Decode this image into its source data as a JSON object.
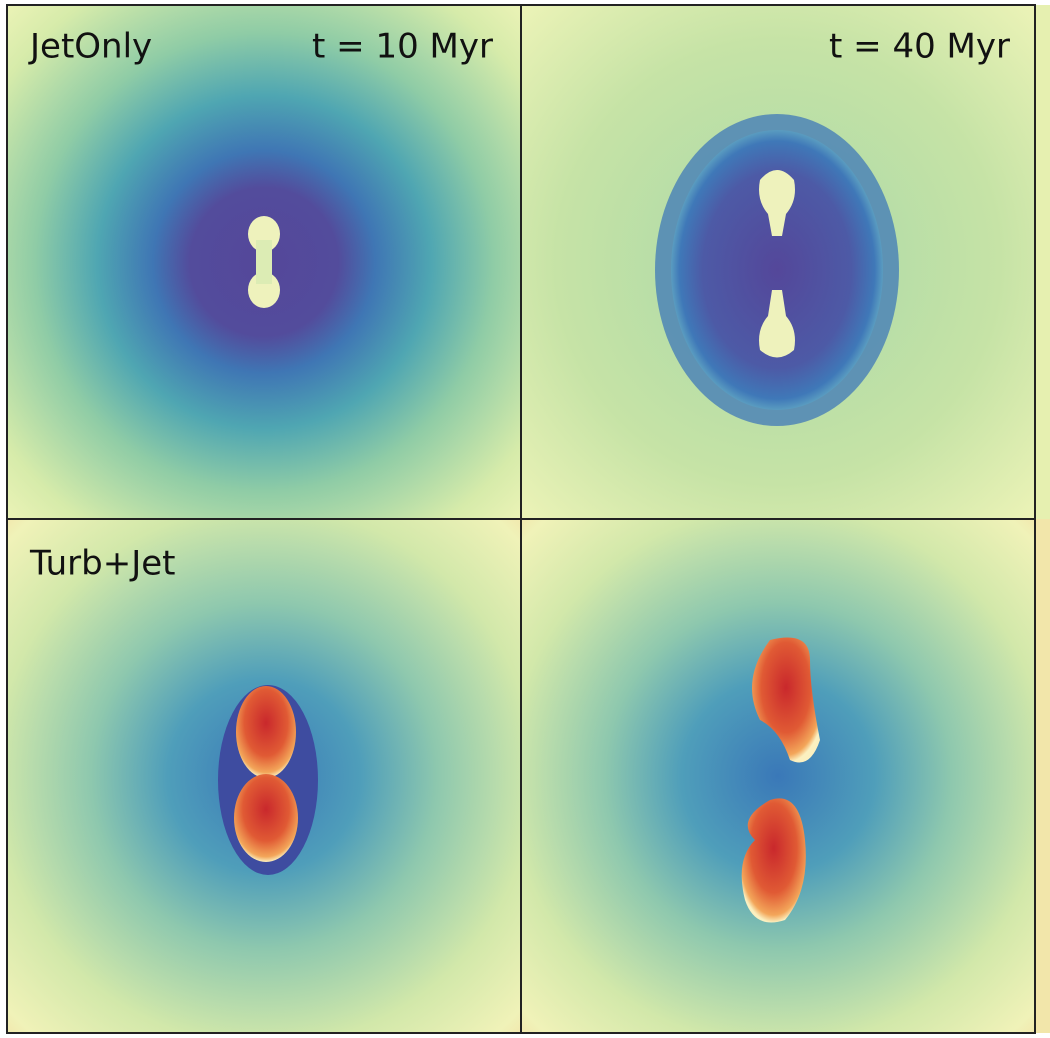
{
  "rows": [
    {
      "label": "JetOnly"
    },
    {
      "label": "Turb+Jet"
    }
  ],
  "columns": [
    {
      "time": "t = 10 Myr"
    },
    {
      "time": "t = 40 Myr"
    }
  ]
}
